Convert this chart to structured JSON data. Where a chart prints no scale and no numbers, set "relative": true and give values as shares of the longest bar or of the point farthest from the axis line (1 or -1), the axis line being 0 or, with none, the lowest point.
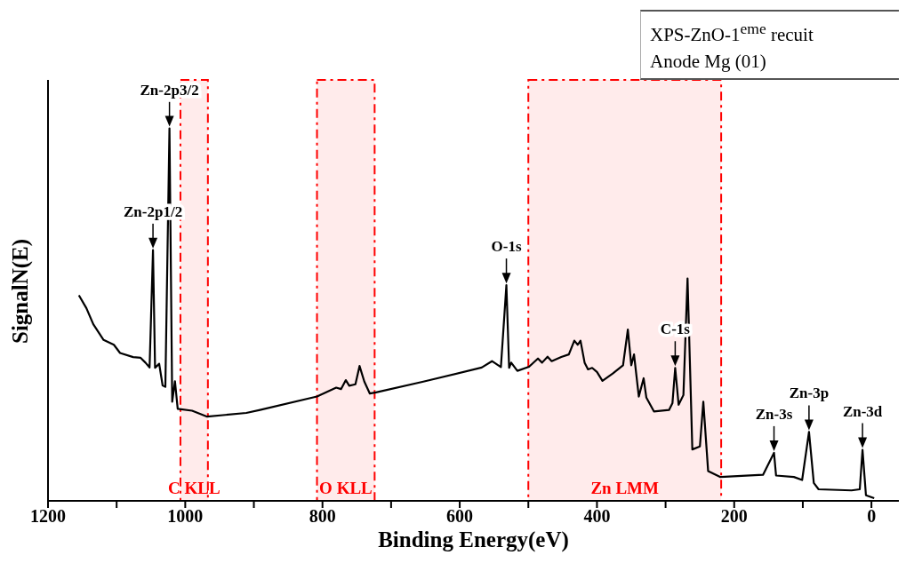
{
  "chart_data": {
    "type": "line",
    "xlabel": "Binding Energy(eV)",
    "ylabel": "SignalN(E)",
    "relative": true,
    "tick_labels": "x",
    "x": [
      1155,
      1144,
      1134,
      1119,
      1104,
      1095,
      1076,
      1065,
      1058,
      1052,
      1047,
      1044,
      1038,
      1033,
      1029,
      1023,
      1019,
      1015,
      1011,
      990,
      968,
      911,
      891,
      808,
      780,
      773,
      766,
      761,
      752,
      746,
      739,
      731,
      722,
      653,
      568,
      553,
      540,
      532,
      528,
      525,
      516,
      499,
      486,
      480,
      472,
      466,
      452,
      441,
      433,
      428,
      424,
      418,
      413,
      407,
      400,
      392,
      377,
      362,
      355,
      350,
      346,
      339,
      332,
      328,
      317,
      295,
      290,
      286,
      281,
      274,
      268,
      261,
      250,
      245,
      238,
      220,
      158,
      142,
      139,
      113,
      101,
      91,
      84,
      77,
      29,
      17,
      13,
      8,
      -4
    ],
    "series": [
      {
        "color": "#000000",
        "values": [
          0.552,
          0.517,
          0.474,
          0.432,
          0.419,
          0.397,
          0.386,
          0.384,
          0.371,
          0.358,
          0.673,
          0.357,
          0.368,
          0.31,
          0.306,
          1.0,
          0.266,
          0.321,
          0.247,
          0.242,
          0.226,
          0.236,
          0.244,
          0.28,
          0.304,
          0.3,
          0.324,
          0.309,
          0.313,
          0.362,
          0.32,
          0.288,
          0.291,
          0.32,
          0.358,
          0.375,
          0.359,
          0.579,
          0.357,
          0.371,
          0.349,
          0.36,
          0.382,
          0.371,
          0.387,
          0.375,
          0.386,
          0.393,
          0.43,
          0.419,
          0.43,
          0.371,
          0.353,
          0.357,
          0.346,
          0.322,
          0.342,
          0.364,
          0.46,
          0.364,
          0.393,
          0.28,
          0.329,
          0.277,
          0.24,
          0.244,
          0.262,
          0.357,
          0.258,
          0.284,
          0.597,
          0.138,
          0.146,
          0.266,
          0.08,
          0.064,
          0.07,
          0.129,
          0.068,
          0.064,
          0.056,
          0.185,
          0.048,
          0.031,
          0.028,
          0.031,
          0.137,
          0.015,
          0.007
        ]
      }
    ],
    "xlim": [
      1200,
      -40
    ],
    "xticks": [
      1200,
      {
        "value": 1100,
        "label": null
      },
      1000,
      {
        "value": 900,
        "label": null
      },
      800,
      {
        "value": 700,
        "label": null
      },
      600,
      {
        "value": 500,
        "label": null
      },
      400,
      {
        "value": 300,
        "label": null
      },
      200,
      {
        "value": 100,
        "label": null
      },
      0
    ],
    "bands": [
      {
        "axis": "x",
        "from": 1007,
        "to": 967,
        "label": "C KLL",
        "color": "#ff0000"
      },
      {
        "axis": "x",
        "from": 808,
        "to": 724,
        "label": "O KLL",
        "color": "#ff0000"
      },
      {
        "axis": "x",
        "from": 500,
        "to": 219,
        "label": "Zn LMM",
        "color": "#ff0000"
      }
    ],
    "annotations": [
      "XPS-ZnO-1$^{eme}$ recuit",
      "Anode Mg (01)",
      {
        "text": "Zn-2p3/2",
        "x": 1023,
        "y": 1.0
      },
      {
        "text": "Zn-2p1/2",
        "x": 1047,
        "y": 0.673
      },
      {
        "text": "O-1s",
        "x": 532,
        "y": 0.579
      },
      {
        "text": "C-1s",
        "x": 286,
        "y": 0.357
      },
      {
        "text": "Zn-3s",
        "x": 142,
        "y": 0.129
      },
      {
        "text": "Zn-3p",
        "x": 91,
        "y": 0.185
      },
      {
        "text": "Zn-3d",
        "x": 13,
        "y": 0.137
      }
    ],
    "grid": false,
    "legend": false,
    "marker": "none",
    "line_style": "solid"
  }
}
